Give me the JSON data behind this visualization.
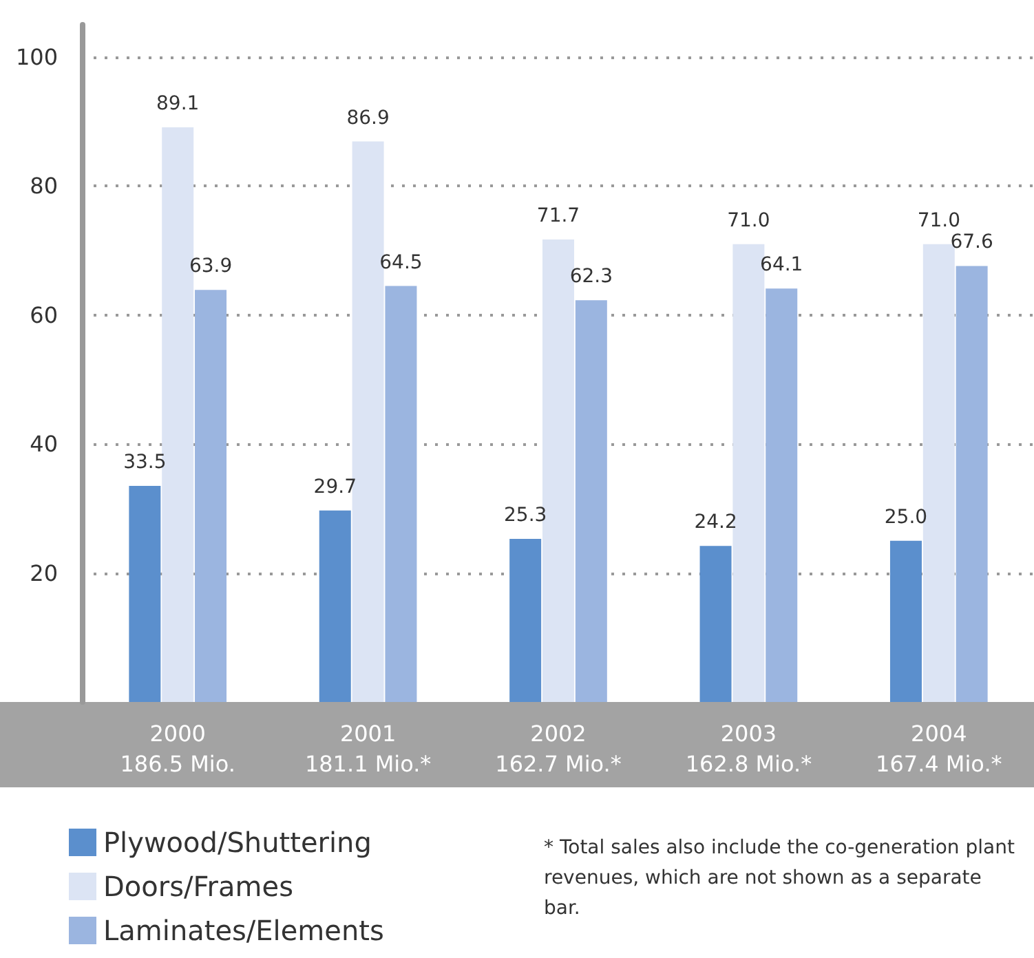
{
  "chart_data": {
    "type": "bar",
    "categories": [
      "2000\n186.5 Mio.",
      "2001\n181.1 Mio.*",
      "2002\n162.7 Mio.*",
      "2003\n162.8 Mio.*",
      "2004\n167.4 Mio.*"
    ],
    "series": [
      {
        "name": "Plywood/Shuttering",
        "color": "#5b8fcd",
        "values": [
          33.5,
          29.7,
          25.3,
          24.2,
          25.0
        ],
        "value_labels": [
          "33.5",
          "29.7",
          "25.3",
          "24.2",
          "25.0"
        ]
      },
      {
        "name": "Doors/Frames",
        "color": "#dce4f4",
        "values": [
          89.1,
          86.9,
          71.7,
          71.0,
          71.0
        ],
        "value_labels": [
          "89.1",
          "86.9",
          "71.7",
          "71.0",
          "71.0"
        ]
      },
      {
        "name": "Laminates/Elements",
        "color": "#9bb5e0",
        "values": [
          63.9,
          64.5,
          62.3,
          64.1,
          67.6
        ],
        "value_labels": [
          "63.9",
          "64.5",
          "62.3",
          "64.1",
          "67.6"
        ]
      }
    ],
    "ylim": [
      0,
      105
    ],
    "yticks": [
      20,
      40,
      60,
      80,
      100
    ],
    "grid": "y",
    "legend": "bottom left",
    "annotations": [
      "* Total sales also include the co-generation plant revenues, which are not shown as a separate bar."
    ]
  }
}
